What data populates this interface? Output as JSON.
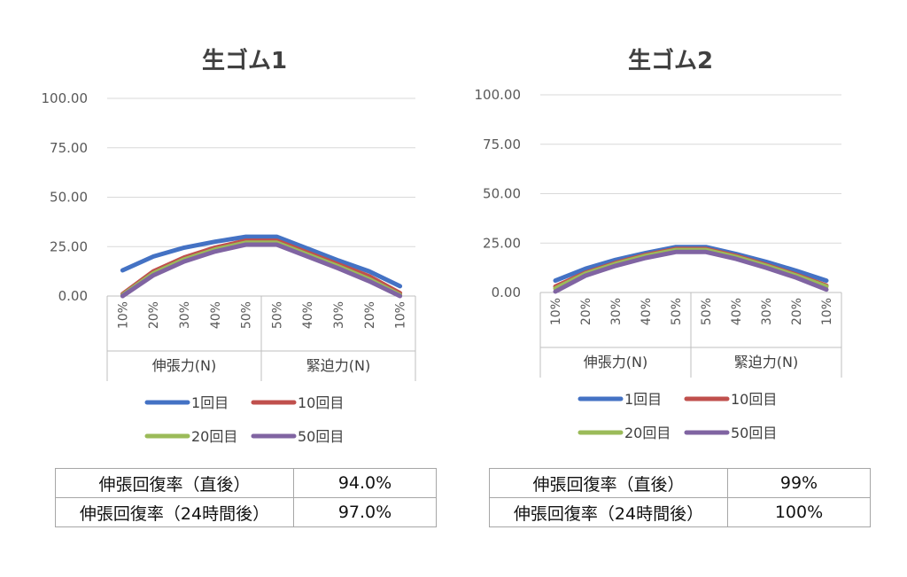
{
  "chart_data": [
    {
      "type": "line",
      "title": "生ゴム1",
      "ylim": [
        0,
        100
      ],
      "yticks": [
        "0.00",
        "25.00",
        "50.00",
        "75.00",
        "100.00"
      ],
      "categories": [
        "10%",
        "20%",
        "30%",
        "40%",
        "50%",
        "50%",
        "40%",
        "30%",
        "20%",
        "10%"
      ],
      "category_groups": [
        {
          "label": "伸張力(N)",
          "span": 5
        },
        {
          "label": "緊迫力(N)",
          "span": 5
        }
      ],
      "series": [
        {
          "name": "1回目",
          "color": "#4472C4",
          "values": [
            13,
            20,
            24.5,
            27.5,
            30,
            30,
            24,
            18,
            12.5,
            5
          ]
        },
        {
          "name": "10回目",
          "color": "#C0504D",
          "values": [
            1,
            12.5,
            19.5,
            24.5,
            28,
            28,
            22,
            16,
            10,
            1.5
          ]
        },
        {
          "name": "20回目",
          "color": "#9BBB59",
          "values": [
            0.5,
            11.5,
            18.5,
            23.5,
            27,
            27,
            21,
            15,
            8.5,
            0.5
          ]
        },
        {
          "name": "50回目",
          "color": "#8064A2",
          "values": [
            0,
            10.5,
            17.5,
            22.5,
            26,
            26,
            20,
            14,
            7.5,
            0
          ]
        }
      ],
      "grid": true,
      "legend_position": "bottom"
    },
    {
      "type": "line",
      "title": "生ゴム2",
      "ylim": [
        0,
        100
      ],
      "yticks": [
        "0.00",
        "25.00",
        "50.00",
        "75.00",
        "100.00"
      ],
      "categories": [
        "10%",
        "20%",
        "30%",
        "40%",
        "50%",
        "50%",
        "40%",
        "30%",
        "20%",
        "10%"
      ],
      "category_groups": [
        {
          "label": "伸張力(N)",
          "span": 5
        },
        {
          "label": "緊迫力(N)",
          "span": 5
        }
      ],
      "series": [
        {
          "name": "1回目",
          "color": "#4472C4",
          "values": [
            6,
            12,
            16.5,
            20,
            23,
            23,
            19.5,
            15.5,
            11,
            6
          ]
        },
        {
          "name": "10回目",
          "color": "#C0504D",
          "values": [
            3,
            10,
            15,
            19,
            22,
            22,
            18.5,
            14,
            9,
            3.5
          ]
        },
        {
          "name": "20回目",
          "color": "#9BBB59",
          "values": [
            2,
            9.5,
            14.5,
            18.5,
            21.5,
            21.5,
            18,
            13.5,
            8.5,
            3
          ]
        },
        {
          "name": "50回目",
          "color": "#8064A2",
          "values": [
            0.5,
            8.5,
            13.5,
            17.5,
            20.5,
            20.5,
            17,
            12.5,
            7.5,
            1.5
          ]
        }
      ],
      "grid": true,
      "legend_position": "bottom"
    }
  ],
  "tables": [
    {
      "rows": [
        {
          "label": "伸張回復率（直後）",
          "value": "94.0%"
        },
        {
          "label": "伸張回復率（24時間後）",
          "value": "97.0%"
        }
      ]
    },
    {
      "rows": [
        {
          "label": "伸張回復率（直後）",
          "value": "99%"
        },
        {
          "label": "伸張回復率（24時間後）",
          "value": "100%"
        }
      ]
    }
  ]
}
